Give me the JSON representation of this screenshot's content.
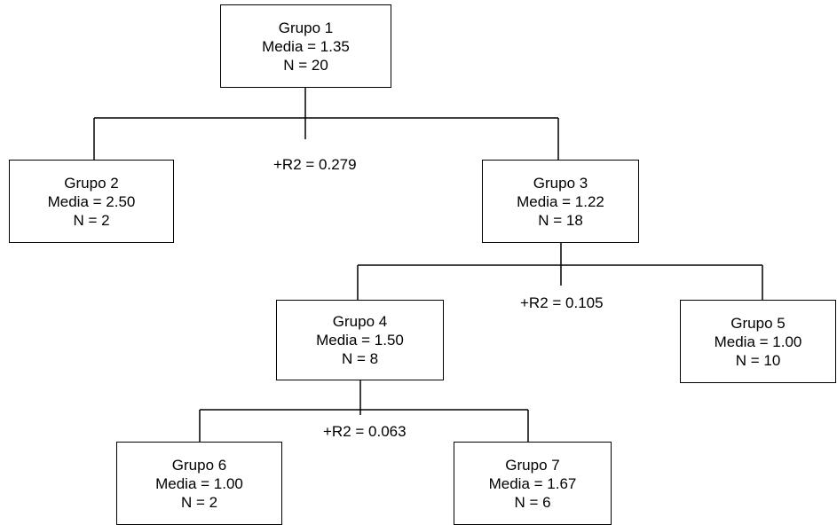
{
  "nodes": [
    {
      "group": "Grupo 1",
      "media": "Media = 1.35",
      "n": "N = 20"
    },
    {
      "group": "Grupo 2",
      "media": "Media = 2.50",
      "n": "N = 2"
    },
    {
      "group": "Grupo 3",
      "media": "Media = 1.22",
      "n": "N = 18"
    },
    {
      "group": "Grupo 4",
      "media": "Media = 1.50",
      "n": "N = 8"
    },
    {
      "group": "Grupo 5",
      "media": "Media = 1.00",
      "n": "N = 10"
    },
    {
      "group": "Grupo 6",
      "media": "Media = 1.00",
      "n": "N = 2"
    },
    {
      "group": "Grupo 7",
      "media": "Media = 1.67",
      "n": "N = 6"
    }
  ],
  "splits": [
    {
      "label": "+R2 = 0.279"
    },
    {
      "label": "+R2 = 0.105"
    },
    {
      "label": "+R2 = 0.063"
    }
  ]
}
